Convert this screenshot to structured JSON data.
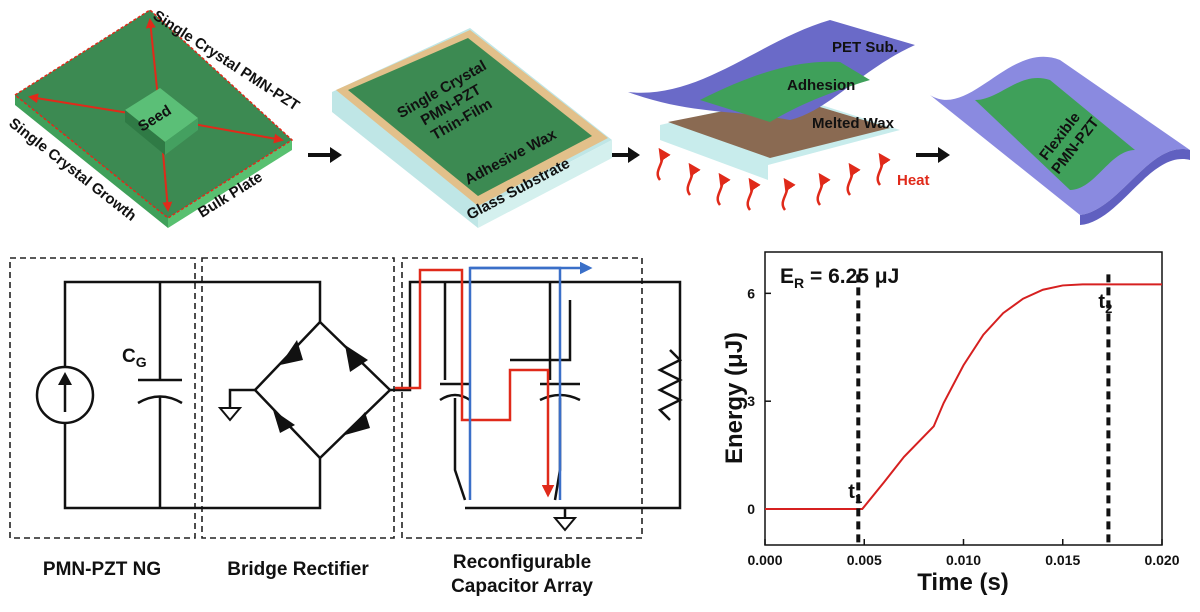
{
  "fabrication": {
    "steps": [
      {
        "labels": [
          "Single Crystal PMN-PZT",
          "Seed",
          "Single Crystal Growth",
          "Bulk Plate"
        ]
      },
      {
        "labels": [
          "Single Crystal",
          "PMN-PZT",
          "Thin-Film",
          "Adhesive Wax",
          "Glass Substrate"
        ]
      },
      {
        "labels": [
          "PET Sub.",
          "Adhesion",
          "Melted Wax",
          "Heat"
        ]
      },
      {
        "labels": [
          "Flexible",
          "PMN-PZT"
        ]
      }
    ]
  },
  "circuit": {
    "capacitor_label": {
      "main": "C",
      "sub": "G"
    },
    "blocks": [
      "PMN-PZT NG",
      "Bridge Rectifier",
      "Reconfigurable",
      "Capacitor Array"
    ]
  },
  "chart_data": {
    "type": "line",
    "annotation": {
      "main": "E",
      "sub": "R",
      "rest": " = 6.25 μJ"
    },
    "x_label": "Time (s)",
    "y_label": "Energy (μJ)",
    "x": [
      0,
      0.0049,
      0.006,
      0.007,
      0.0085,
      0.009,
      0.01,
      0.011,
      0.012,
      0.013,
      0.014,
      0.015,
      0.016,
      0.017,
      0.018,
      0.02
    ],
    "series": [
      {
        "color": "#d62020",
        "values": [
          0,
          0,
          0.75,
          1.45,
          2.3,
          2.95,
          4.0,
          4.85,
          5.45,
          5.85,
          6.1,
          6.22,
          6.25,
          6.25,
          6.25,
          6.25
        ]
      }
    ],
    "markers": [
      {
        "x": 0.0047,
        "label": "t",
        "sub": "1"
      },
      {
        "x": 0.0173,
        "label": "t",
        "sub": "2"
      }
    ],
    "xlim": [
      0,
      0.02
    ],
    "ylim": [
      -1.0,
      7.15
    ],
    "xticks": [
      {
        "value": 0,
        "label": "0.000"
      },
      {
        "value": 0.005,
        "label": "0.005"
      },
      {
        "value": 0.01,
        "label": "0.010"
      },
      {
        "value": 0.015,
        "label": "0.015"
      },
      {
        "value": 0.02,
        "label": "0.020"
      }
    ],
    "yticks": [
      0,
      3,
      6
    ]
  }
}
